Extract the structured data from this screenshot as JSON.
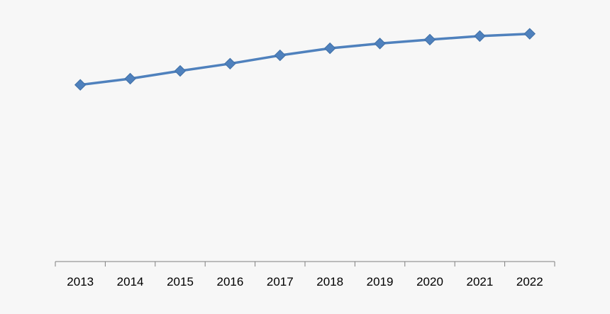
{
  "chart_data": {
    "type": "line",
    "title": "",
    "xlabel": "",
    "ylabel": "",
    "categories": [
      "2013",
      "2014",
      "2015",
      "2016",
      "2017",
      "2018",
      "2019",
      "2020",
      "2021",
      "2022"
    ],
    "series": [
      {
        "values": [
          100,
          103.5,
          107.9,
          112,
          116.7,
          120.7,
          123.4,
          125.6,
          127.6,
          128.9
        ]
      }
    ],
    "ylim": [
      0,
      140
    ],
    "grid": false,
    "legend": "none",
    "marker": "diamond",
    "colors": {
      "line": "#4f81bd",
      "marker": "#4f81bd",
      "axis": "#7f7f7f",
      "background": "#f7f7f7"
    }
  }
}
